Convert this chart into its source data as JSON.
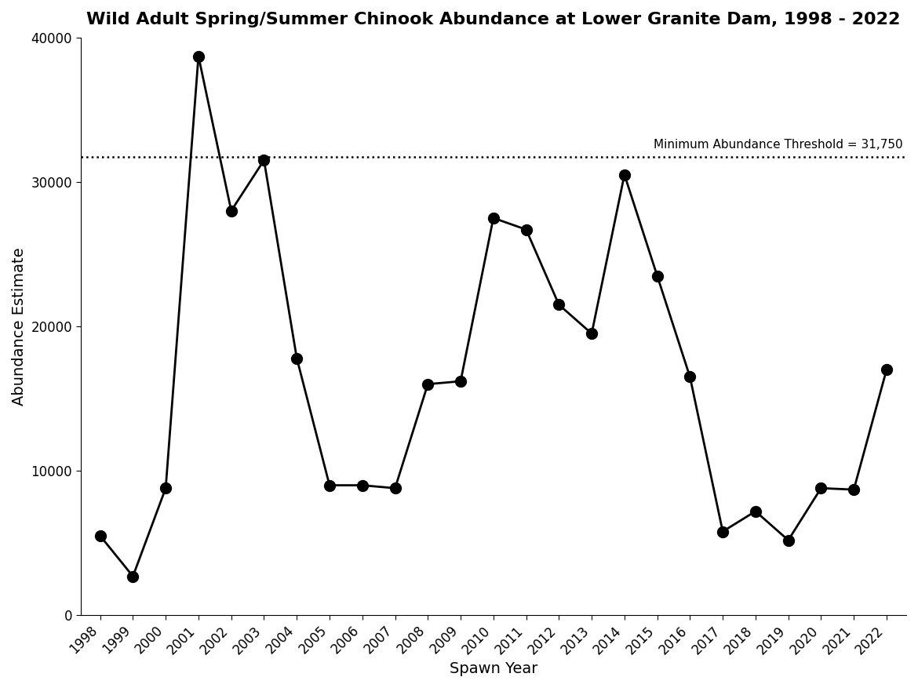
{
  "title": "Wild Adult Spring/Summer Chinook Abundance at Lower Granite Dam, 1998 - 2022",
  "xlabel": "Spawn Year",
  "ylabel": "Abundance Estimate",
  "threshold": 31750,
  "threshold_label": "Minimum Abundance Threshold = 31,750",
  "years": [
    1998,
    1999,
    2000,
    2001,
    2002,
    2003,
    2004,
    2005,
    2006,
    2007,
    2008,
    2009,
    2010,
    2011,
    2012,
    2013,
    2014,
    2015,
    2016,
    2017,
    2018,
    2019,
    2020,
    2021,
    2022
  ],
  "values": [
    5500,
    2700,
    8800,
    38700,
    28000,
    31500,
    17800,
    9000,
    9000,
    8800,
    16000,
    16200,
    27500,
    26700,
    21500,
    19500,
    30500,
    23500,
    16500,
    5800,
    7200,
    5200,
    8800,
    8700,
    17000
  ],
  "line_color": "#000000",
  "marker_color": "#000000",
  "marker_size": 10,
  "line_width": 2.0,
  "threshold_line_style": "dotted",
  "threshold_color": "#000000",
  "ylim": [
    0,
    40000
  ],
  "yticks": [
    0,
    10000,
    20000,
    30000,
    40000
  ],
  "ytick_labels": [
    "0",
    "10000",
    "20000",
    "30000",
    "40000"
  ],
  "background_color": "#ffffff",
  "title_fontsize": 16,
  "axis_label_fontsize": 14,
  "tick_fontsize": 12,
  "threshold_fontsize": 11
}
